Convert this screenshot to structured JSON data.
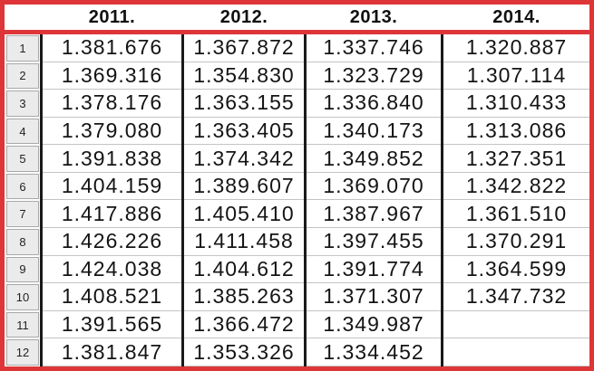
{
  "table": {
    "corner_label": "",
    "row_numbers": [
      "1",
      "2",
      "3",
      "4",
      "5",
      "6",
      "7",
      "8",
      "9",
      "10",
      "11",
      "12"
    ],
    "columns": [
      {
        "label": "2011.",
        "values": [
          "1.381.676",
          "1.369.316",
          "1.378.176",
          "1.379.080",
          "1.391.838",
          "1.404.159",
          "1.417.886",
          "1.426.226",
          "1.424.038",
          "1.408.521",
          "1.391.565",
          "1.381.847"
        ]
      },
      {
        "label": "2012.",
        "values": [
          "1.367.872",
          "1.354.830",
          "1.363.155",
          "1.363.405",
          "1.374.342",
          "1.389.607",
          "1.405.410",
          "1.411.458",
          "1.404.612",
          "1.385.263",
          "1.366.472",
          "1.353.326"
        ]
      },
      {
        "label": "2013.",
        "values": [
          "1.337.746",
          "1.323.729",
          "1.336.840",
          "1.340.173",
          "1.349.852",
          "1.369.070",
          "1.387.967",
          "1.397.455",
          "1.391.774",
          "1.371.307",
          "1.349.987",
          "1.334.452"
        ]
      },
      {
        "label": "2014.",
        "values": [
          "1.320.887",
          "1.307.114",
          "1.310.433",
          "1.313.086",
          "1.327.351",
          "1.342.822",
          "1.361.510",
          "1.370.291",
          "1.364.599",
          "1.347.732",
          "",
          ""
        ]
      }
    ]
  },
  "colors": {
    "outer_border_red": "#de3638",
    "column_separator_black": "#1a1a1a",
    "row_gridline_gray": "#c4c4c4",
    "row_header_bg": "#ebebeb",
    "row_header_border": "#a8a8a8",
    "data_text": "#141414"
  }
}
